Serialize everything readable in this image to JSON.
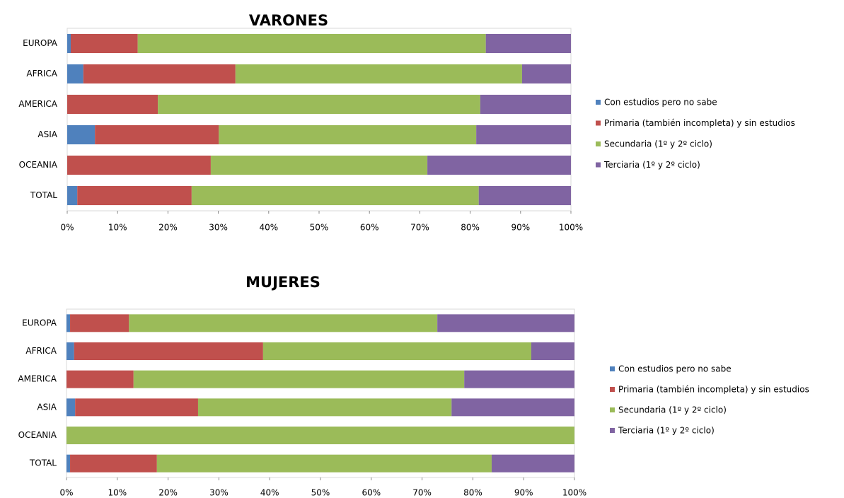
{
  "chart_data": [
    {
      "type": "bar",
      "orientation": "horizontal",
      "stacked": true,
      "title": "VARONES",
      "categories": [
        "EUROPA",
        "AFRICA",
        "AMERICA",
        "ASIA",
        "OCEANIA",
        "TOTAL"
      ],
      "series": [
        {
          "name": "Con estudios pero no sabe",
          "color": "#4f81bd",
          "values": [
            0.7,
            3.2,
            0,
            5.5,
            0,
            2.0
          ]
        },
        {
          "name": "Primaria (también incompleta) y sin estudios",
          "color": "#c0504d",
          "values": [
            13.3,
            30.2,
            18.0,
            24.6,
            28.5,
            22.7
          ]
        },
        {
          "name": "Secundaria (1º y 2º ciclo)",
          "color": "#9bbb59",
          "values": [
            69.1,
            56.9,
            64.0,
            51.1,
            43.0,
            57.0
          ]
        },
        {
          "name": "Terciaria (1º y 2º ciclo)",
          "color": "#8064a2",
          "values": [
            16.9,
            9.7,
            18.0,
            18.8,
            28.5,
            18.3
          ]
        }
      ],
      "xlim": [
        0,
        100
      ],
      "xticks": [
        {
          "value": 0,
          "label": "0%"
        },
        {
          "value": 10,
          "label": "10%"
        },
        {
          "value": 20,
          "label": "20%"
        },
        {
          "value": 30,
          "label": "30%"
        },
        {
          "value": 40,
          "label": "40%"
        },
        {
          "value": 50,
          "label": "50%"
        },
        {
          "value": 60,
          "label": "60%"
        },
        {
          "value": 70,
          "label": "70%"
        },
        {
          "value": 80,
          "label": "80%"
        },
        {
          "value": 90,
          "label": "90%"
        },
        {
          "value": 100,
          "label": "100%"
        }
      ],
      "legend": "right"
    },
    {
      "type": "bar",
      "orientation": "horizontal",
      "stacked": true,
      "title": "MUJERES",
      "categories": [
        "EUROPA",
        "AFRICA",
        "AMERICA",
        "ASIA",
        "OCEANIA",
        "TOTAL"
      ],
      "series": [
        {
          "name": "Con estudios pero no sabe",
          "color": "#4f81bd",
          "values": [
            0.7,
            1.5,
            0,
            1.7,
            0,
            0.7
          ]
        },
        {
          "name": "Primaria (también incompleta) y sin estudios",
          "color": "#c0504d",
          "values": [
            11.6,
            37.2,
            13.2,
            24.2,
            0,
            17.1
          ]
        },
        {
          "name": "Secundaria (1º y 2º ciclo)",
          "color": "#9bbb59",
          "values": [
            60.7,
            52.8,
            65.1,
            49.9,
            100,
            65.9
          ]
        },
        {
          "name": "Terciaria (1º y 2º ciclo)",
          "color": "#8064a2",
          "values": [
            27.0,
            8.5,
            21.7,
            24.2,
            0,
            16.3
          ]
        }
      ],
      "xlim": [
        0,
        100
      ],
      "xticks": [
        {
          "value": 0,
          "label": "0%"
        },
        {
          "value": 10,
          "label": "10%"
        },
        {
          "value": 20,
          "label": "20%"
        },
        {
          "value": 30,
          "label": "30%"
        },
        {
          "value": 40,
          "label": "40%"
        },
        {
          "value": 50,
          "label": "50%"
        },
        {
          "value": 60,
          "label": "60%"
        },
        {
          "value": 70,
          "label": "70%"
        },
        {
          "value": 80,
          "label": "80%"
        },
        {
          "value": 90,
          "label": "90%"
        },
        {
          "value": 100,
          "label": "100%"
        }
      ],
      "legend": "right"
    }
  ]
}
